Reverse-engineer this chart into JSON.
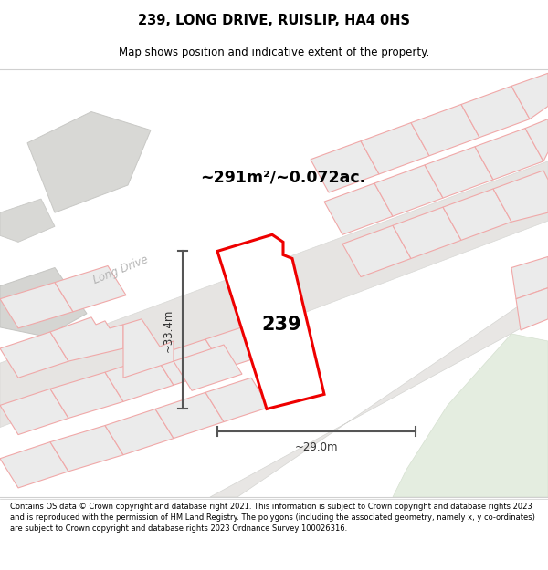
{
  "title": "239, LONG DRIVE, RUISLIP, HA4 0HS",
  "subtitle": "Map shows position and indicative extent of the property.",
  "area_text": "~291m²/~0.072ac.",
  "label_239": "239",
  "dim_vertical": "~33.4m",
  "dim_horizontal": "~29.0m",
  "road_label": "Long Drive",
  "footer": "Contains OS data © Crown copyright and database right 2021. This information is subject to Crown copyright and database rights 2023 and is reproduced with the permission of HM Land Registry. The polygons (including the associated geometry, namely x, y co-ordinates) are subject to Crown copyright and database rights 2023 Ordnance Survey 100026316.",
  "bg_color": "#f8f8f8",
  "map_bg": "#f2f1f0",
  "highlight_color": "#ff0000",
  "dim_color": "#555555",
  "road_text_color": "#b8b8b8",
  "plot_pink": "#fce8e8",
  "plot_gray": "#e0e0e0",
  "plot_gray2": "#d8d8d8",
  "green_color": "#e8ede4",
  "road_gray": "#e4e4e2"
}
